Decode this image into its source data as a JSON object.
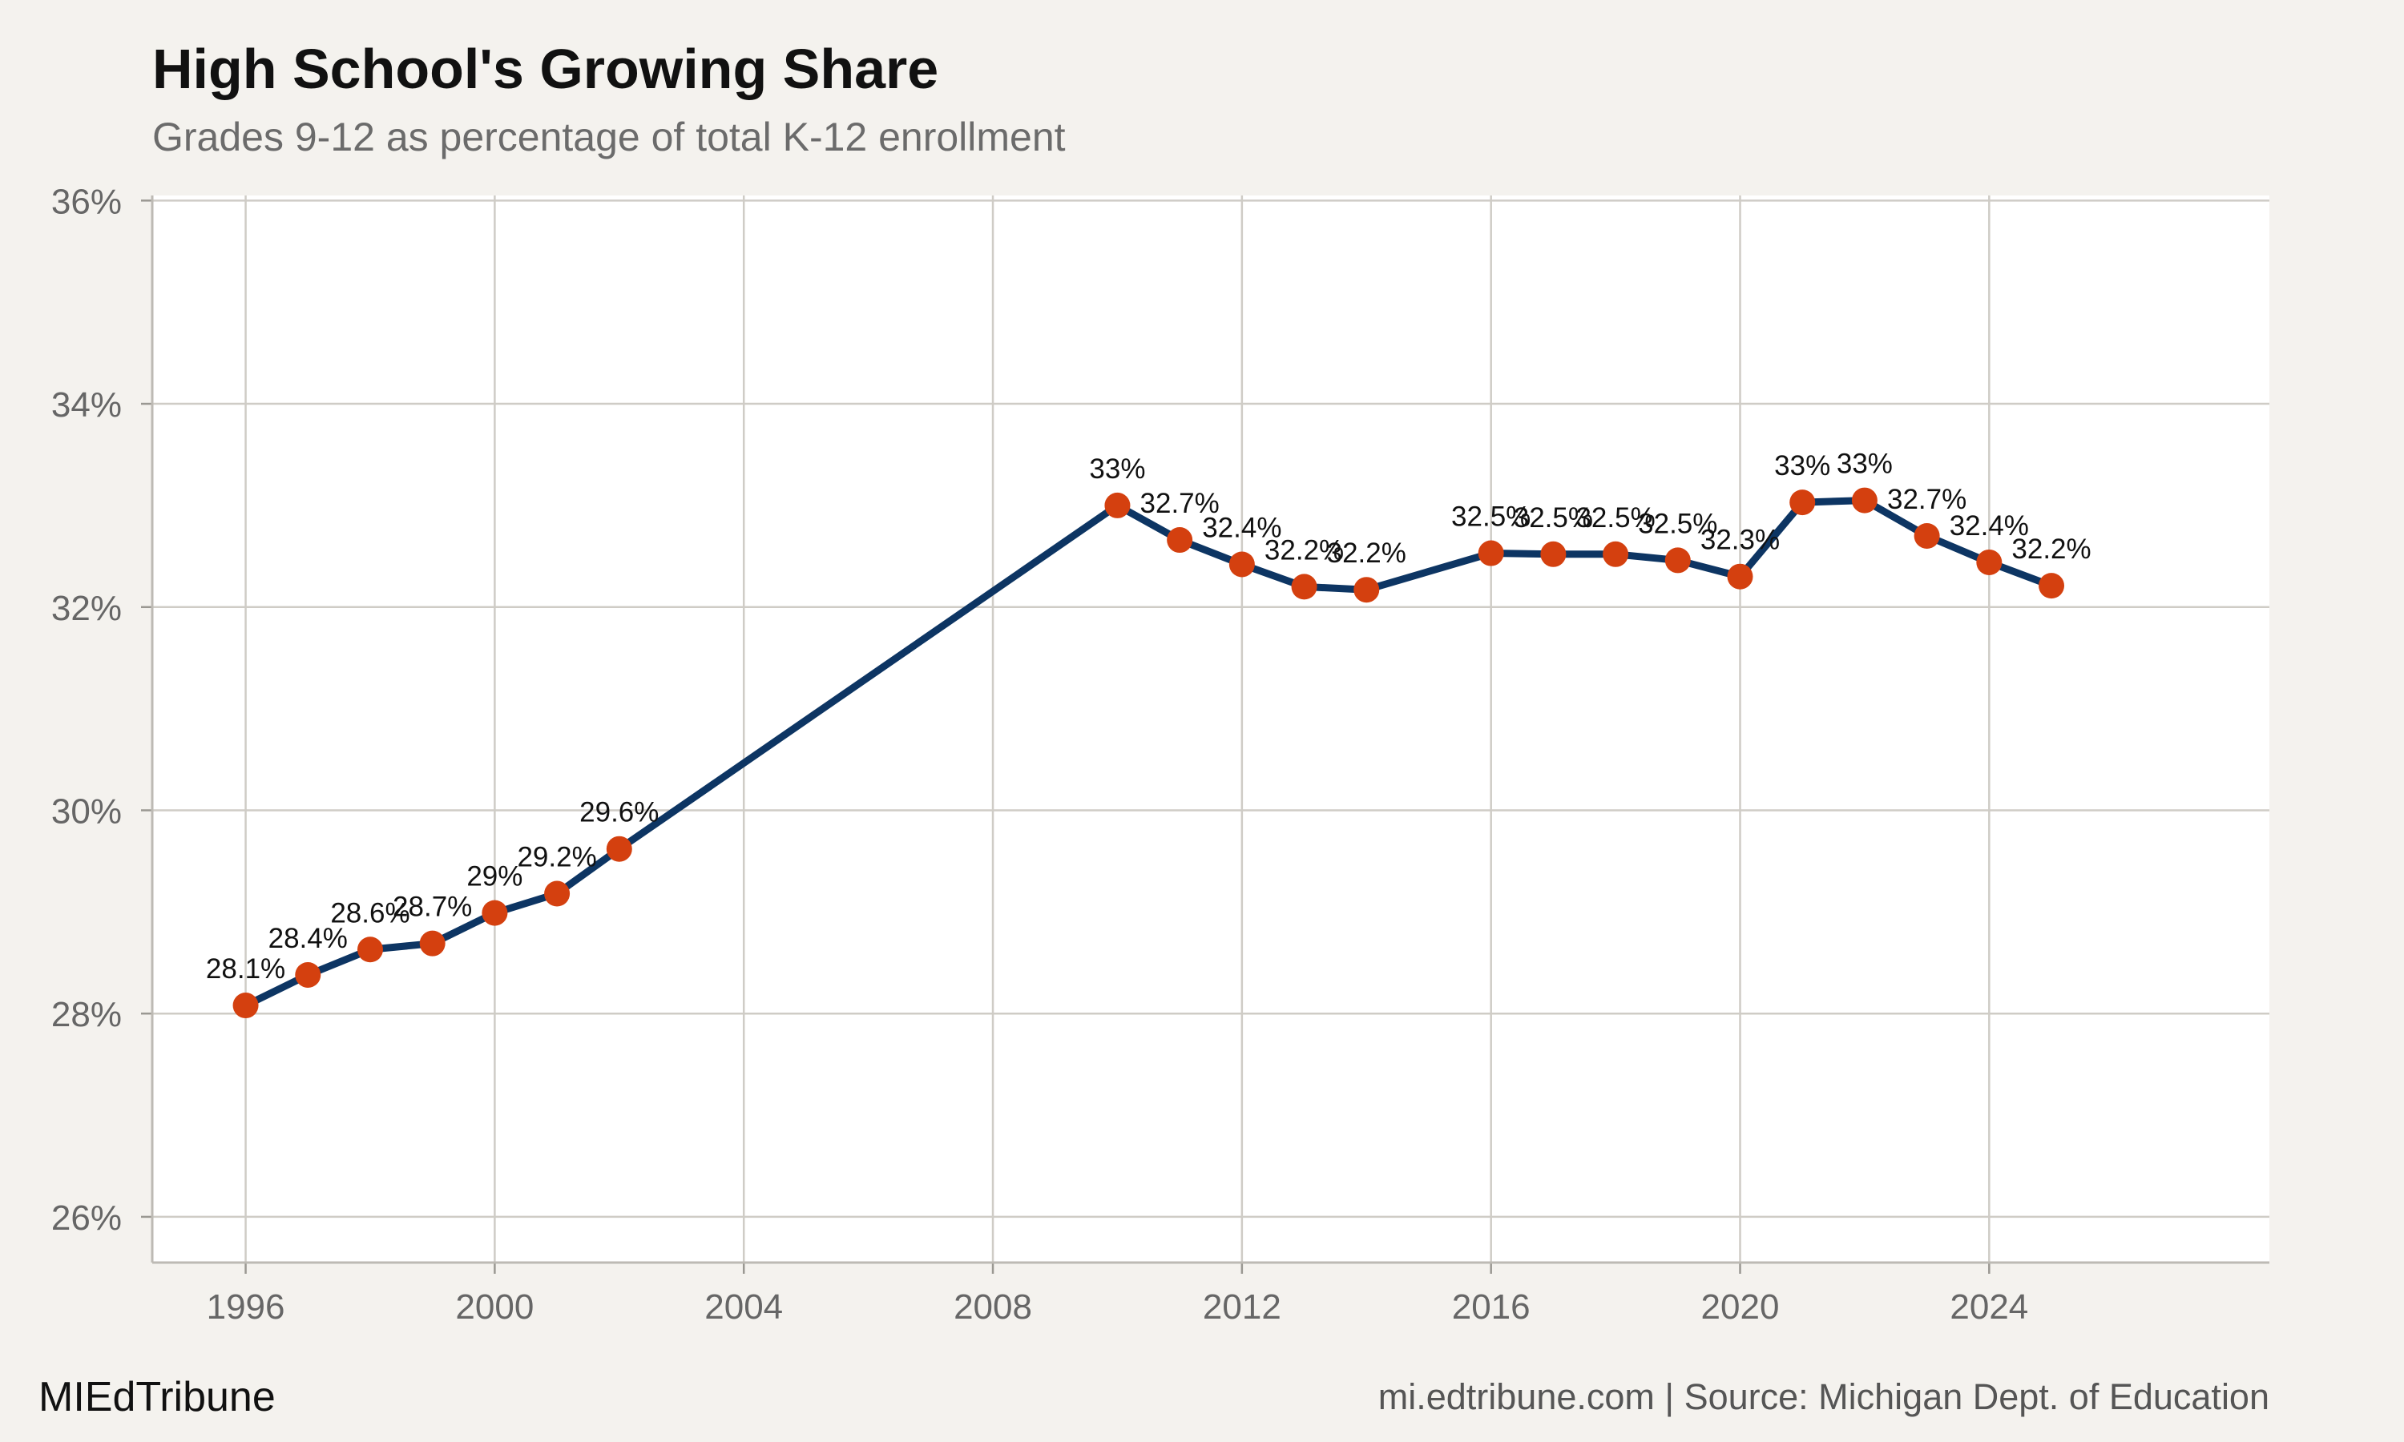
{
  "header": {
    "title": "High School's Growing Share",
    "subtitle": "Grades 9-12 as percentage of total K-12 enrollment"
  },
  "footer": {
    "brand": "MIEdTribune",
    "source": "mi.edtribune.com | Source: Michigan Dept. of Education"
  },
  "colors": {
    "line": "#0d3563",
    "point": "#d4400f",
    "background": "#f4f2ee",
    "panel": "#ffffff",
    "grid": "#cfccc6"
  },
  "chart_data": {
    "type": "line",
    "title": "High School's Growing Share",
    "subtitle": "Grades 9-12 as percentage of total K-12 enrollment",
    "xlabel": "",
    "ylabel": "",
    "xlim": [
      1994.5,
      2028.5
    ],
    "ylim": [
      25.55,
      36.05
    ],
    "x_ticks": [
      1996,
      2000,
      2004,
      2008,
      2012,
      2016,
      2020,
      2024
    ],
    "x_tick_labels": [
      "1996",
      "2000",
      "2004",
      "2008",
      "2012",
      "2016",
      "2020",
      "2024"
    ],
    "y_ticks": [
      26,
      28,
      30,
      32,
      34,
      36
    ],
    "y_tick_labels": [
      "26%",
      "28%",
      "30%",
      "32%",
      "34%",
      "36%"
    ],
    "grid": true,
    "legend": "none",
    "series": [
      {
        "x": [
          1996,
          1997,
          1998,
          1999,
          2000,
          2001,
          2002,
          2010,
          2011,
          2012,
          2013,
          2014,
          2016,
          2017,
          2018,
          2019,
          2020,
          2021,
          2022,
          2023,
          2024,
          2025
        ],
        "values": [
          28.08,
          28.38,
          28.63,
          28.69,
          28.99,
          29.18,
          29.62,
          33.0,
          32.66,
          32.42,
          32.2,
          32.17,
          32.53,
          32.52,
          32.52,
          32.46,
          32.3,
          33.03,
          33.05,
          32.7,
          32.44,
          32.21
        ],
        "labels": [
          "28.1%",
          "28.4%",
          "28.6%",
          "28.7%",
          "29%",
          "29.2%",
          "29.6%",
          "33%",
          "32.7%",
          "32.4%",
          "32.2%",
          "32.2%",
          "32.5%",
          "32.5%",
          "32.5%",
          "32.5%",
          "32.3%",
          "33%",
          "33%",
          "32.7%",
          "32.4%",
          "32.2%"
        ]
      }
    ]
  }
}
